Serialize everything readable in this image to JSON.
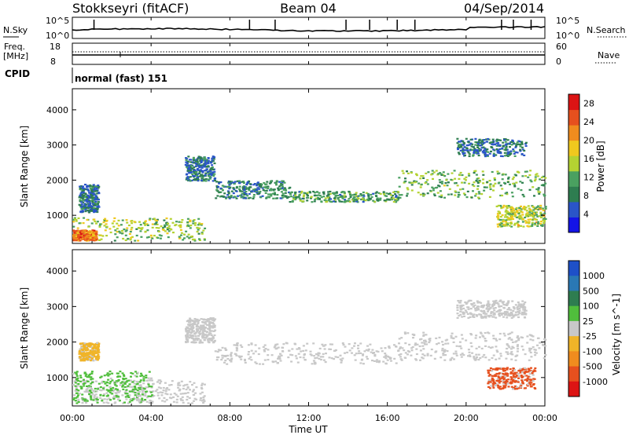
{
  "header": {
    "station": "Stokkseyri (fitACF)",
    "beam": "Beam 04",
    "date": "04/Sep/2014"
  },
  "status_panels": {
    "nsky_label": "N.Sky",
    "nsearch_label": "N.Search",
    "nsky_tick_top": "10^5",
    "nsky_tick_bottom": "10^0",
    "freq_label": "Freq.",
    "freq_unit": "[MHz]",
    "freq_tick_top": "18",
    "freq_tick_bottom": "8",
    "nave_label": "Nave",
    "nave_tick_top": "60",
    "nave_tick_bottom": "0",
    "cpid_label": "CPID",
    "cpid_value": "normal (fast) 151"
  },
  "colors": {
    "ground_scatter": "#c8c8c8",
    "power_scale": [
      "#1414e6",
      "#2a55c8",
      "#2e7d50",
      "#4aa060",
      "#b4d232",
      "#f0c81e",
      "#f08c1e",
      "#e6501e",
      "#dc1414"
    ],
    "velocity_scale": [
      "#1e50c8",
      "#2a78b4",
      "#2e7d50",
      "#50be3c",
      "#c8c8c8",
      "#f0b428",
      "#f08c1e",
      "#e6501e",
      "#dc1414"
    ]
  },
  "chart_data": [
    {
      "type": "heatmap",
      "name": "power",
      "ylabel": "Slant Range [km]",
      "ylim": [
        200,
        4600
      ],
      "yticks": [
        1000,
        2000,
        3000,
        4000
      ],
      "colorbar_label": "Power [dB]",
      "colorbar_ticks": [
        4,
        8,
        12,
        16,
        20,
        24,
        28
      ],
      "colorbar_range": [
        0,
        30
      ],
      "x": [
        "00:00",
        "04:00",
        "08:00",
        "12:00",
        "16:00",
        "20:00",
        "00:00"
      ],
      "xlim_hours": [
        0,
        24
      ],
      "echo_regions": [
        {
          "t0": 0.0,
          "t1": 6.7,
          "r0": 300,
          "r1": 950,
          "level": 14
        },
        {
          "t0": 0.0,
          "t1": 1.2,
          "r0": 300,
          "r1": 600,
          "level": 24
        },
        {
          "t0": 0.3,
          "t1": 1.3,
          "r0": 1100,
          "r1": 1900,
          "level": 6
        },
        {
          "t0": 5.7,
          "t1": 7.2,
          "r0": 2000,
          "r1": 2700,
          "level": 6
        },
        {
          "t0": 7.2,
          "t1": 11.0,
          "r0": 1500,
          "r1": 2000,
          "level": 8
        },
        {
          "t0": 11.0,
          "t1": 16.5,
          "r0": 1400,
          "r1": 1700,
          "level": 10
        },
        {
          "t0": 16.5,
          "t1": 24.0,
          "r0": 1500,
          "r1": 2300,
          "level": 12
        },
        {
          "t0": 19.5,
          "t1": 23.0,
          "r0": 2700,
          "r1": 3200,
          "level": 6
        },
        {
          "t0": 21.5,
          "t1": 24.0,
          "r0": 700,
          "r1": 1300,
          "level": 16
        }
      ]
    },
    {
      "type": "heatmap",
      "name": "velocity",
      "ylabel": "Slant Range [km]",
      "ylim": [
        200,
        4600
      ],
      "yticks": [
        1000,
        2000,
        3000,
        4000
      ],
      "colorbar_label": "Velocity [m s^-1]",
      "colorbar_ticks": [
        "1000",
        "500",
        "100",
        "25",
        "-25",
        "-100",
        "-500",
        "-1000"
      ],
      "x": [
        "00:00",
        "04:00",
        "08:00",
        "12:00",
        "16:00",
        "20:00",
        "00:00"
      ],
      "xlabel": "Time UT",
      "xlim_hours": [
        0,
        24
      ],
      "echo_regions": [
        {
          "t0": 0.0,
          "t1": 6.7,
          "r0": 300,
          "r1": 950,
          "level": "ground"
        },
        {
          "t0": 0.0,
          "t1": 4.0,
          "r0": 300,
          "r1": 1200,
          "level": 100
        },
        {
          "t0": 0.3,
          "t1": 1.3,
          "r0": 1500,
          "r1": 2000,
          "level": -100
        },
        {
          "t0": 5.7,
          "t1": 7.2,
          "r0": 2000,
          "r1": 2700,
          "level": "ground"
        },
        {
          "t0": 7.2,
          "t1": 16.5,
          "r0": 1400,
          "r1": 2000,
          "level": "ground"
        },
        {
          "t0": 16.5,
          "t1": 24.0,
          "r0": 1500,
          "r1": 2300,
          "level": "ground"
        },
        {
          "t0": 19.5,
          "t1": 23.0,
          "r0": 2700,
          "r1": 3200,
          "level": "ground"
        },
        {
          "t0": 21.0,
          "t1": 23.5,
          "r0": 700,
          "r1": 1300,
          "level": -500
        }
      ]
    }
  ]
}
